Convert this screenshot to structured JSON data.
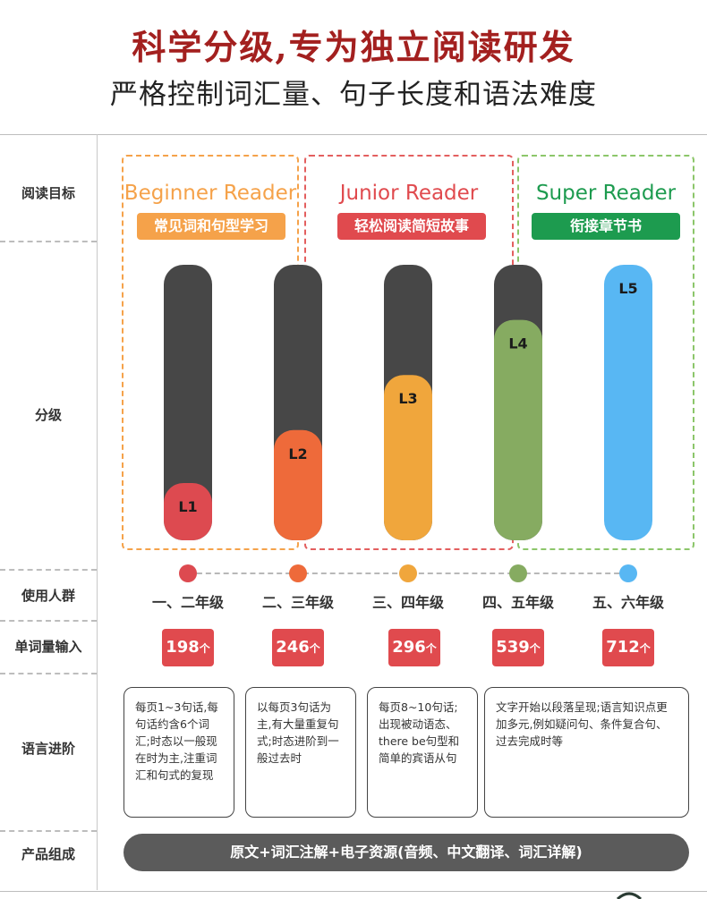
{
  "header": {
    "title": "科学分级,专为独立阅读研发",
    "subtitle": "严格控制词汇量、句子长度和语法难度"
  },
  "row_labels": {
    "target": "阅读目标",
    "level": "分级",
    "audience": "使用人群",
    "words": "单词量输入",
    "language": "语言进阶",
    "product": "产品组成"
  },
  "sections": [
    {
      "title": "Beginner Reader",
      "tag": "常见词和句型学习",
      "color": "#f5a24a"
    },
    {
      "title": "Junior Reader",
      "tag": "轻松阅读简短故事",
      "color": "#e04a4e"
    },
    {
      "title": "Super Reader",
      "tag": "衔接章节书",
      "color": "#1d9b4f"
    }
  ],
  "section_border_colors": [
    "#f5a24a",
    "#e35f5f",
    "#8cc66a"
  ],
  "chart_data": {
    "type": "bar",
    "categories": [
      "L1",
      "L2",
      "L3",
      "L4",
      "L5"
    ],
    "values": [
      1,
      2,
      3,
      4,
      5
    ],
    "ylim": [
      0,
      5
    ],
    "colors": [
      "#dd4a50",
      "#ee6a3a",
      "#f0a63c",
      "#86ab61",
      "#58b7f3"
    ],
    "track_color": "#474747"
  },
  "audience": {
    "grades": [
      "一、二年级",
      "二、三年级",
      "三、四年级",
      "四、五年级",
      "五、六年级"
    ],
    "dot_colors": [
      "#dd4a50",
      "#ee6a3a",
      "#f0a63c",
      "#86ab61",
      "#58b7f3"
    ]
  },
  "words": {
    "values": [
      "198",
      "246",
      "296",
      "539",
      "712"
    ],
    "unit": "个"
  },
  "language_notes": [
    "每页1~3句话,每句话约含6个词汇;时态以一般现在时为主,注重词汇和句式的复现",
    "以每页3句话为主,有大量重复句式;时态进阶到一般过去时",
    "每页8~10句话;出现被动语态、there be句型和简单的宾语从句",
    "文字开始以段落呈现;语言知识点更加多元,例如疑问句、条件复合句、过去完成时等"
  ],
  "product": "原文+词汇注解+电子资源(音频、中文翻译、词汇详解)"
}
